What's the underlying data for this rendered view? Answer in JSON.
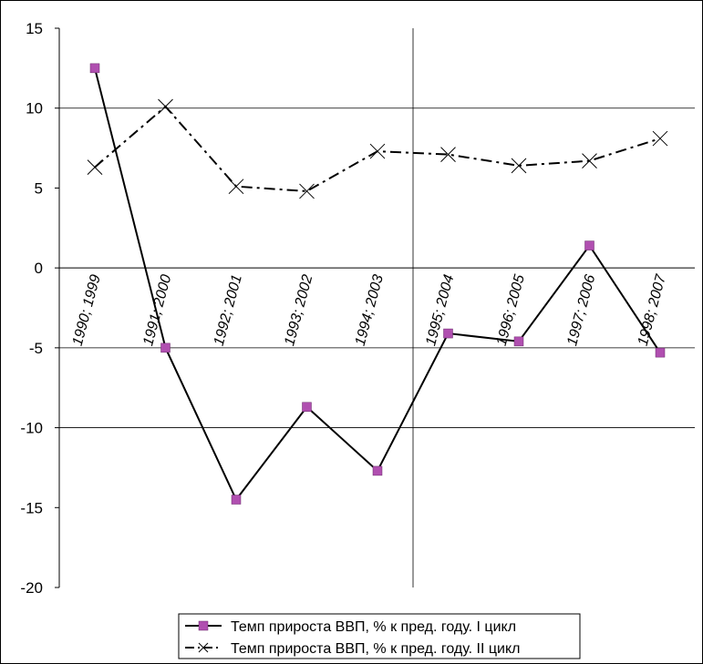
{
  "chart_data": {
    "type": "line",
    "categories": [
      "1990; 1999",
      "1991; 2000",
      "1992; 2001",
      "1993; 2002",
      "1994; 2003",
      "1995; 2004",
      "1996; 2005",
      "1997; 2006",
      "1998; 2007"
    ],
    "series": [
      {
        "name": "Темп прироста ВВП, % к пред. году. I цикл",
        "values": [
          12.5,
          -5.0,
          -14.5,
          -8.7,
          -12.7,
          -4.1,
          -4.6,
          1.4,
          -5.3
        ],
        "marker": "square",
        "line_style": "solid",
        "color": "#000000",
        "marker_color": "#b04fb0"
      },
      {
        "name": "Темп прироста ВВП, % к пред. году. II цикл",
        "values": [
          6.3,
          10.1,
          5.1,
          4.8,
          7.3,
          7.1,
          6.4,
          6.7,
          8.1
        ],
        "marker": "x",
        "line_style": "dash-dot",
        "color": "#000000"
      }
    ],
    "ylim": [
      -20,
      15
    ],
    "yticks": [
      15,
      10,
      5,
      0,
      -5,
      -10,
      -15,
      -20
    ],
    "y_gridlines": [
      10,
      -5,
      -10
    ],
    "x_axis_at": 0,
    "vertical_line_at_category": "1995; 2004",
    "legend_position": "bottom-center"
  }
}
